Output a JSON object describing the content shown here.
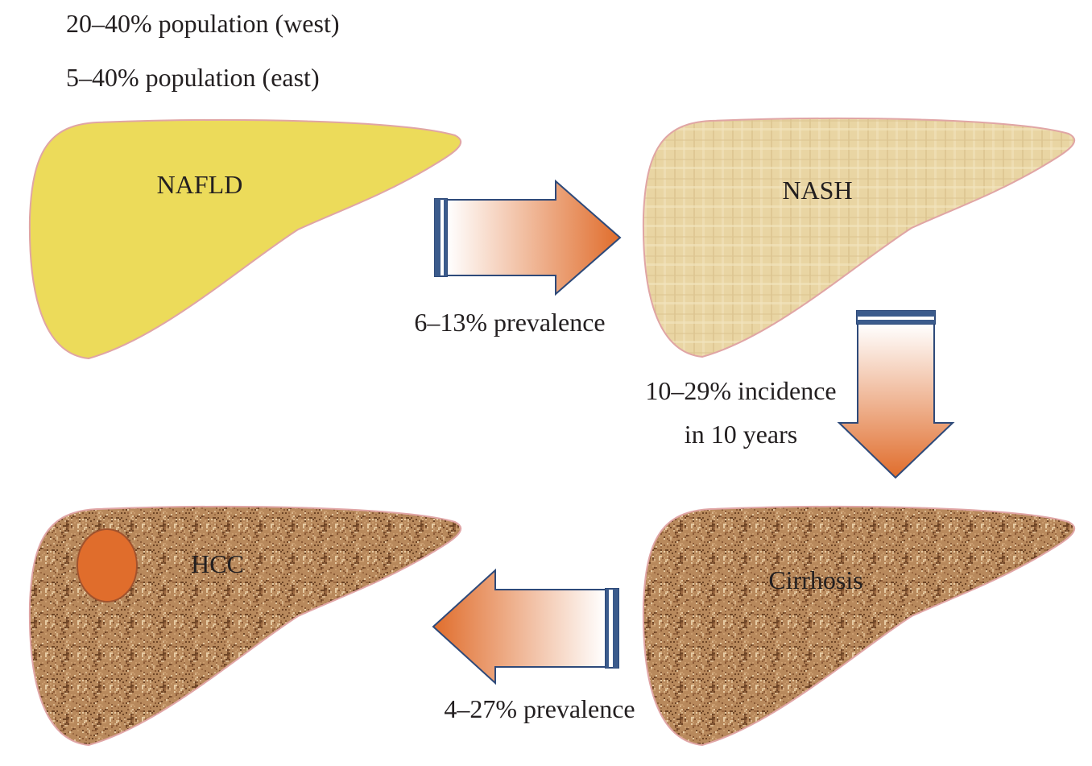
{
  "header": {
    "lines": [
      "20–40% population (west)",
      "5–40% population (east)"
    ]
  },
  "nodes": [
    {
      "label": "NAFLD"
    },
    {
      "label": "NASH"
    },
    {
      "label": "Cirrhosis"
    },
    {
      "label": "HCC"
    }
  ],
  "edges": [
    {
      "lines": [
        "6–13% prevalence"
      ]
    },
    {
      "lines": [
        "10–29% incidence",
        "in 10 years"
      ]
    },
    {
      "lines": [
        "4–27% prevalence"
      ]
    }
  ]
}
